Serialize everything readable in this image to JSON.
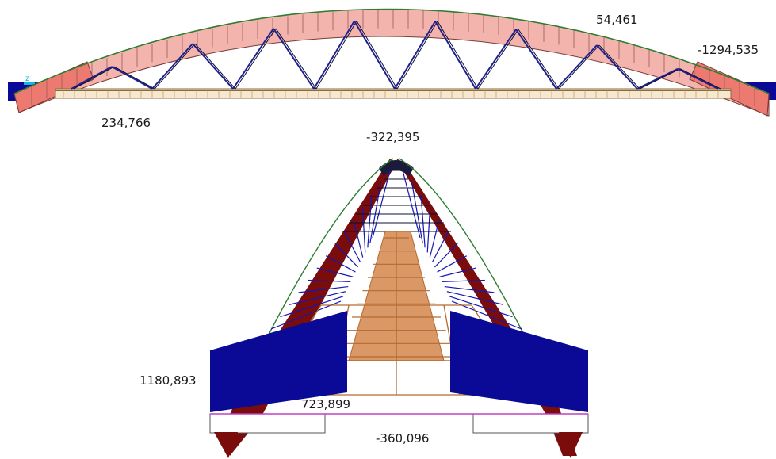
{
  "labels": {
    "arch_crown_force": "54,461",
    "arch_end_force": "-1294,535",
    "deck_end_force": "234,766",
    "crown_moment": "-322,395",
    "arch_base_force": "1180,893",
    "deck_force": "723,899",
    "base_tie_force": "-360,096"
  },
  "colors": {
    "arch_diagram_fill": "#f4b4ae",
    "arch_diagram_end_fill": "#ec7a70",
    "arch_diagram_stroke": "#7a3b36",
    "arch_line": "#2e7d32",
    "truss_diagonal": "#1f1f8f",
    "truss_dark": "#0b1030",
    "deck_fill": "#f6e7cf",
    "deck_stroke": "#8a6a3a",
    "support_blue": "#0a0a96",
    "end_view_arch": "#7a0c0c",
    "end_view_deck": "#b46a32",
    "end_view_deck_light": "#d99866",
    "end_view_hangers": "#1515b8",
    "axis_marker": "#14b4e6",
    "moment_outline": "#c040c0"
  },
  "icons": {
    "axis_marker": "z-axis-icon"
  }
}
